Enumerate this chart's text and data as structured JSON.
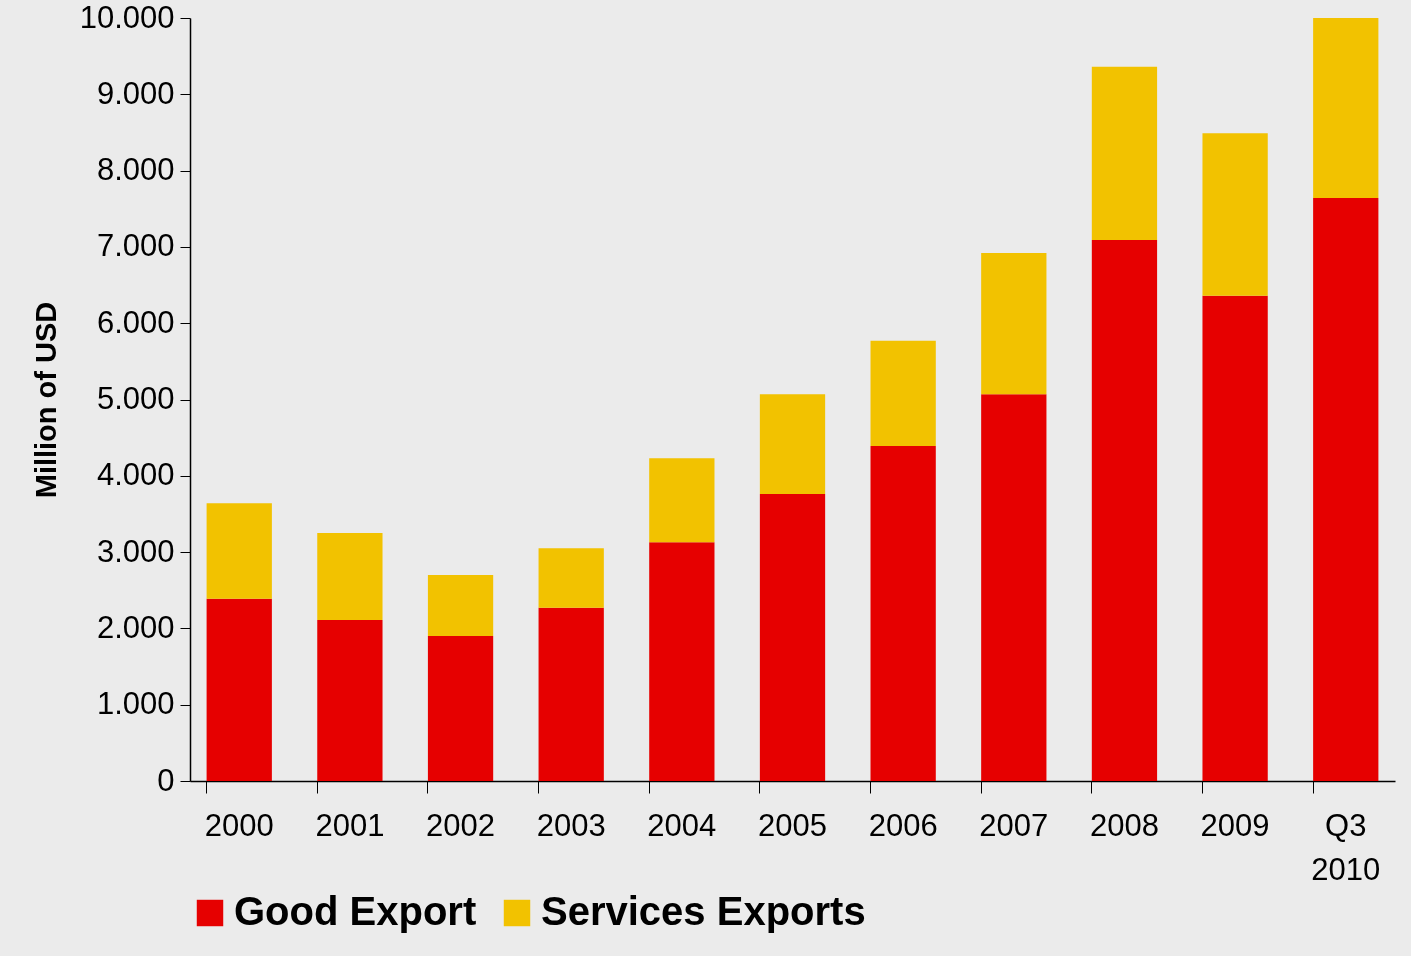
{
  "chart_data": {
    "type": "bar",
    "stacked": true,
    "ylabel": "Million of USD",
    "categories": [
      "2000",
      "2001",
      "2002",
      "2003",
      "2004",
      "2005",
      "2006",
      "2007",
      "2008",
      "2009",
      "Q3 2010"
    ],
    "series": [
      {
        "name": "Good Export",
        "color": "#e60000",
        "values": [
          2390,
          2110,
          1900,
          2270,
          3130,
          3760,
          4390,
          5070,
          7090,
          6360,
          7640
        ]
      },
      {
        "name": "Services Exports",
        "color": "#f2c200",
        "values": [
          1250,
          1140,
          800,
          780,
          1100,
          1310,
          1380,
          1850,
          2270,
          2130,
          2360
        ]
      }
    ],
    "ylim": [
      0,
      10000
    ],
    "yticks": [
      0,
      {
        "value": 1000,
        "label": "1.000"
      },
      {
        "value": 2000,
        "label": "2.000"
      },
      {
        "value": 3000,
        "label": "3.000"
      },
      {
        "value": 4000,
        "label": "4.000"
      },
      {
        "value": 5000,
        "label": "5.000"
      },
      {
        "value": 6000,
        "label": "6.000"
      },
      {
        "value": 7000,
        "label": "7.000"
      },
      {
        "value": 8000,
        "label": "8.000"
      },
      {
        "value": 9000,
        "label": "9.000"
      },
      {
        "value": 10000,
        "label": "10.000"
      }
    ],
    "grid": false,
    "legend": "bottom"
  }
}
